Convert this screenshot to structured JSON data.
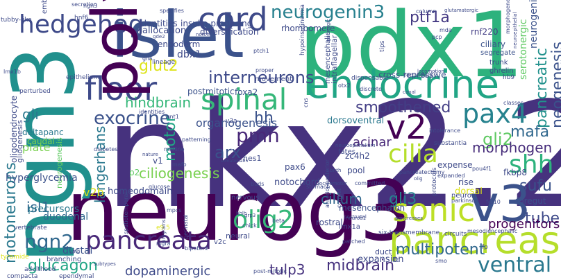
{
  "cloud": {
    "words": [
      {
        "text": "nkx2.2",
        "color": "#46327e"
      },
      {
        "text": "neurog3",
        "color": "#440154"
      },
      {
        "text": "pdx1",
        "color": "#2db27d"
      },
      {
        "text": "islet",
        "color": "#3b528b"
      },
      {
        "text": "ngn3",
        "color": "#21908d"
      },
      {
        "text": "endocrine",
        "color": "#21a585"
      },
      {
        "text": "pancreas",
        "color": "#b5de2b"
      },
      {
        "text": "cord",
        "color": "#3e4a89"
      },
      {
        "text": "v3",
        "color": "#3b528b"
      },
      {
        "text": "hedgehog",
        "color": "#3e4a89"
      },
      {
        "text": "neurogenin3",
        "color": "#27808e"
      },
      {
        "text": "floor",
        "color": "#3e4a89"
      },
      {
        "text": "spinal",
        "color": "#35b779"
      },
      {
        "text": "pancreata",
        "color": "#482878"
      },
      {
        "text": "polydactyly",
        "color": "#440154"
      },
      {
        "text": "pax4",
        "color": "#26828e"
      },
      {
        "text": "v2",
        "color": "#440154"
      },
      {
        "text": "shh",
        "color": "#2db27d"
      },
      {
        "text": "sonic",
        "color": "#bddf26"
      },
      {
        "text": "olig2",
        "color": "#35b779"
      },
      {
        "text": "ngn2",
        "color": "#31688e"
      },
      {
        "text": "ventral",
        "color": "#2a788e"
      },
      {
        "text": "cilia",
        "color": "#b5de2b"
      },
      {
        "text": "motoneurons",
        "color": "#2a788e"
      },
      {
        "text": "interneurons",
        "color": "#3e4a89"
      },
      {
        "text": "exocrine",
        "color": "#3b528b"
      },
      {
        "text": "smoothened",
        "color": "#433e85"
      },
      {
        "text": "pmn",
        "color": "#482878"
      },
      {
        "text": "pancreatic",
        "color": "#21918c"
      },
      {
        "text": "neogenesis",
        "color": "#3b528b"
      },
      {
        "text": "glut2",
        "color": "#dde318"
      },
      {
        "text": "ptf1a",
        "color": "#443983"
      },
      {
        "text": "mafa",
        "color": "#31688e"
      },
      {
        "text": "gli2",
        "color": "#5ec962"
      },
      {
        "text": "sufu",
        "color": "#3b528b"
      },
      {
        "text": "tube",
        "color": "#3e4a89"
      },
      {
        "text": "midbrain",
        "color": "#46327e"
      },
      {
        "text": "glucagon",
        "color": "#21a585"
      },
      {
        "text": "gli3",
        "color": "#26828e"
      },
      {
        "text": "multipotent",
        "color": "#31688e"
      },
      {
        "text": "ciliogenesis",
        "color": "#7ad151"
      },
      {
        "text": "langerhans",
        "color": "#2a788e"
      },
      {
        "text": "motor",
        "color": "#21a585"
      },
      {
        "text": "arx",
        "color": "#3b528b"
      },
      {
        "text": "hindbrain",
        "color": "#35b779"
      },
      {
        "text": "dopaminergic",
        "color": "#3e4a89"
      },
      {
        "text": "tulp3",
        "color": "#46327e"
      },
      {
        "text": "cilium",
        "color": "#31688e"
      },
      {
        "text": "morphogen",
        "color": "#472d7b"
      },
      {
        "text": "progenitors",
        "color": "#440154"
      },
      {
        "text": "hh",
        "color": "#3b528b"
      },
      {
        "text": "acinar",
        "color": "#482878"
      },
      {
        "text": "isl1",
        "color": "#31688e"
      },
      {
        "text": "gli",
        "color": "#2a788e"
      },
      {
        "text": "organogenesis",
        "color": "#3b528b"
      },
      {
        "text": "neurogenesis",
        "color": "#5ec962"
      },
      {
        "text": "hyperglycemia",
        "color": "#3b528b"
      },
      {
        "text": "homeodomain",
        "color": "#3e4a89"
      },
      {
        "text": "duodenal",
        "color": "#31688e"
      },
      {
        "text": "precursors",
        "color": "#2a788e"
      },
      {
        "text": "v2b",
        "color": "#dde318"
      },
      {
        "text": "notochord",
        "color": "#3e4a89"
      },
      {
        "text": "mesencephalon",
        "color": "#3b528b"
      },
      {
        "text": "expansion",
        "color": "#3e4a89"
      },
      {
        "text": "dorsoventral",
        "color": "#2a788e"
      },
      {
        "text": "plate",
        "color": "#7ad151"
      },
      {
        "text": "ductal",
        "color": "#3b528b"
      },
      {
        "text": "neurogenin",
        "color": "#3b528b"
      },
      {
        "text": "serotonergic",
        "color": "#5ec962"
      },
      {
        "text": "rnf220",
        "color": "#433e85"
      },
      {
        "text": "ciliary",
        "color": "#3b528b"
      },
      {
        "text": "segregate",
        "color": "#3b528b"
      },
      {
        "text": "trunk",
        "color": "#3e4a89"
      },
      {
        "text": "ghrelin",
        "color": "#3e4a89"
      },
      {
        "text": "mesencephalic",
        "color": "#3e4a89"
      },
      {
        "text": "intraflagellar",
        "color": "#3e4a89"
      },
      {
        "text": "rhombomere",
        "color": "#3e4a89"
      },
      {
        "text": "cross-repressive",
        "color": "#3b528b"
      },
      {
        "text": "dbx1",
        "color": "#3e4a89"
      },
      {
        "text": "allocation",
        "color": "#3e4a89"
      },
      {
        "text": "endoderm",
        "color": "#3e4a89"
      },
      {
        "text": "diversification",
        "color": "#3e4a89"
      },
      {
        "text": "identities",
        "color": "#3e4a89"
      },
      {
        "text": "insulin-producing",
        "color": "#3e4a89"
      },
      {
        "text": "specifies",
        "color": "#3e4a89"
      },
      {
        "text": "postmitotic",
        "color": "#3b528b"
      },
      {
        "text": "foxa2",
        "color": "#3b528b"
      },
      {
        "text": "deltapanc",
        "color": "#2a788e"
      },
      {
        "text": "caudal",
        "color": "#7ad151"
      },
      {
        "text": "oligodendrocyte",
        "color": "#3e4a89"
      },
      {
        "text": "gliogenesis",
        "color": "#3e4a89"
      },
      {
        "text": "zc4h2",
        "color": "#3e4a89"
      },
      {
        "text": "fkbp8",
        "color": "#3e4a89"
      },
      {
        "text": "pax6",
        "color": "#3e4a89"
      },
      {
        "text": "hes1",
        "color": "#3e4a89"
      },
      {
        "text": "v1",
        "color": "#3e4a89"
      },
      {
        "text": "p2",
        "color": "#5ec962"
      },
      {
        "text": "expense",
        "color": "#3e4a89"
      },
      {
        "text": "rise",
        "color": "#3e4a89"
      },
      {
        "text": "dorsal",
        "color": "#dde318"
      },
      {
        "text": "pool",
        "color": "#3e4a89"
      },
      {
        "text": "fates",
        "color": "#3e4a89"
      },
      {
        "text": "foregut",
        "color": "#3b528b"
      },
      {
        "text": "neuron",
        "color": "#3e4a89"
      },
      {
        "text": "nervous",
        "color": "#3e4a89"
      },
      {
        "text": "rostral",
        "color": "#3e4a89"
      },
      {
        "text": "neural",
        "color": "#3e4a89"
      },
      {
        "text": "lmx1a",
        "color": "#3e4a89"
      },
      {
        "text": "duct",
        "color": "#3e4a89"
      },
      {
        "text": "tyramide",
        "color": "#dde318"
      },
      {
        "text": "branching",
        "color": "#3e4a89"
      },
      {
        "text": "compacta",
        "color": "#3e4a89"
      },
      {
        "text": "ependymal",
        "color": "#3e4a89"
      },
      {
        "text": "adulthood",
        "color": "#3e4a89"
      },
      {
        "text": "vertebrate",
        "color": "#3e4a89"
      },
      {
        "text": "secretion",
        "color": "#3e4a89"
      },
      {
        "text": "tubby-like",
        "color": "#3e4a89"
      },
      {
        "text": "embryogenesis",
        "color": "#3e4a89"
      },
      {
        "text": "hnf6",
        "color": "#3e4a89"
      },
      {
        "text": "epithelium",
        "color": "#3e4a89"
      },
      {
        "text": "perturbed",
        "color": "#3e4a89"
      },
      {
        "text": "diabetes",
        "color": "#3e4a89"
      },
      {
        "text": "identities",
        "color": "#3e4a89"
      },
      {
        "text": "wnt1",
        "color": "#3e4a89"
      },
      {
        "text": "midline",
        "color": "#3e4a89"
      },
      {
        "text": "mafb",
        "color": "#3e4a89"
      },
      {
        "text": "birth",
        "color": "#3e4a89"
      },
      {
        "text": "stomach",
        "color": "#3e4a89"
      },
      {
        "text": "buds",
        "color": "#3e4a89"
      },
      {
        "text": "glucose",
        "color": "#3e4a89"
      },
      {
        "text": "mpcs",
        "color": "#3e4a89"
      },
      {
        "text": "bhlh",
        "color": "#3e4a89"
      },
      {
        "text": "chick",
        "color": "#3e4a89"
      },
      {
        "text": "beta",
        "color": "#3e4a89"
      },
      {
        "text": "v2c",
        "color": "#3e4a89"
      },
      {
        "text": "ift",
        "color": "#3e4a89"
      },
      {
        "text": "patched",
        "color": "#3e4a89"
      },
      {
        "text": "six-transmembrane",
        "color": "#3e4a89"
      },
      {
        "text": "circuits",
        "color": "#3e4a89"
      },
      {
        "text": "smo",
        "color": "#3e4a89"
      },
      {
        "text": "fp",
        "color": "#3e4a89"
      },
      {
        "text": "e9.5",
        "color": "#dde318"
      },
      {
        "text": "parkinson",
        "color": "#3e4a89"
      },
      {
        "text": "mesodiencephalic",
        "color": "#3e4a89"
      },
      {
        "text": "committed",
        "color": "#3e4a89"
      },
      {
        "text": "pancreatectomy",
        "color": "#3e4a89"
      },
      {
        "text": "expanded",
        "color": "#3e4a89"
      },
      {
        "text": "pou4f1",
        "color": "#3e4a89"
      },
      {
        "text": "fgf10",
        "color": "#3e4a89"
      },
      {
        "text": "intolerance",
        "color": "#3e4a89"
      },
      {
        "text": "substantia",
        "color": "#3e4a89"
      },
      {
        "text": "classes",
        "color": "#3e4a89"
      },
      {
        "text": "nigra",
        "color": "#3e4a89"
      },
      {
        "text": "bipotent",
        "color": "#3e4a89"
      },
      {
        "text": "post-mitotic",
        "color": "#3e4a89"
      },
      {
        "text": "subtypes",
        "color": "#3e4a89"
      },
      {
        "text": "spatiotemporal",
        "color": "#3e4a89"
      },
      {
        "text": "programs",
        "color": "#3e4a89"
      },
      {
        "text": "perinatal",
        "color": "#3e4a89"
      },
      {
        "text": "grp3",
        "color": "#3e4a89"
      },
      {
        "text": "anterior-posterior",
        "color": "#3e4a89"
      },
      {
        "text": "correct",
        "color": "#3e4a89"
      },
      {
        "text": "neurod1",
        "color": "#3e4a89"
      },
      {
        "text": "oculomotor",
        "color": "#3e4a89"
      },
      {
        "text": "postnatal",
        "color": "#3e4a89"
      },
      {
        "text": "neuroepithelium",
        "color": "#3e4a89"
      },
      {
        "text": "somatostatin",
        "color": "#3e4a89"
      },
      {
        "text": "patterning",
        "color": "#3e4a89"
      },
      {
        "text": "v2a",
        "color": "#3e4a89"
      },
      {
        "text": "movement",
        "color": "#3e4a89"
      },
      {
        "text": "proper",
        "color": "#3e4a89"
      },
      {
        "text": "hypoinsulinemia",
        "color": "#3e4a89"
      },
      {
        "text": "dispensable",
        "color": "#3e4a89"
      },
      {
        "text": "gamergic",
        "color": "#3e4a89"
      },
      {
        "text": "tips",
        "color": "#3e4a89"
      },
      {
        "text": "redundancy",
        "color": "#3e4a89"
      },
      {
        "text": "otx2",
        "color": "#3e4a89"
      },
      {
        "text": "discrete",
        "color": "#3e4a89"
      },
      {
        "text": "mda",
        "color": "#3e4a89"
      },
      {
        "text": "column",
        "color": "#3e4a89"
      },
      {
        "text": "glutamatergic",
        "color": "#3e4a89"
      },
      {
        "text": "pcp",
        "color": "#3e4a89"
      },
      {
        "text": "morphogenesis",
        "color": "#3e4a89"
      },
      {
        "text": "hb9",
        "color": "#3e4a89"
      },
      {
        "text": "lmx1b",
        "color": "#3e4a89"
      },
      {
        "text": "ngn3",
        "color": "#3e4a89"
      },
      {
        "text": "ptch1",
        "color": "#3e4a89"
      },
      {
        "text": "notch",
        "color": "#3e4a89"
      },
      {
        "text": "gde2",
        "color": "#3e4a89"
      },
      {
        "text": "lineage",
        "color": "#3e4a89"
      },
      {
        "text": "glia",
        "color": "#3e4a89"
      },
      {
        "text": "cns",
        "color": "#3e4a89"
      },
      {
        "text": "protocols",
        "color": "#3e4a89"
      },
      {
        "text": "neuroepithelial",
        "color": "#3e4a89"
      },
      {
        "text": "locomotion",
        "color": "#3e4a89"
      },
      {
        "text": "canal",
        "color": "#3e4a89"
      },
      {
        "text": "nature",
        "color": "#3e4a89"
      },
      {
        "text": "olig",
        "color": "#3e4a89"
      },
      {
        "text": "pancreases",
        "color": "#3e4a89"
      },
      {
        "text": "vmb",
        "color": "#3e4a89"
      }
    ]
  }
}
